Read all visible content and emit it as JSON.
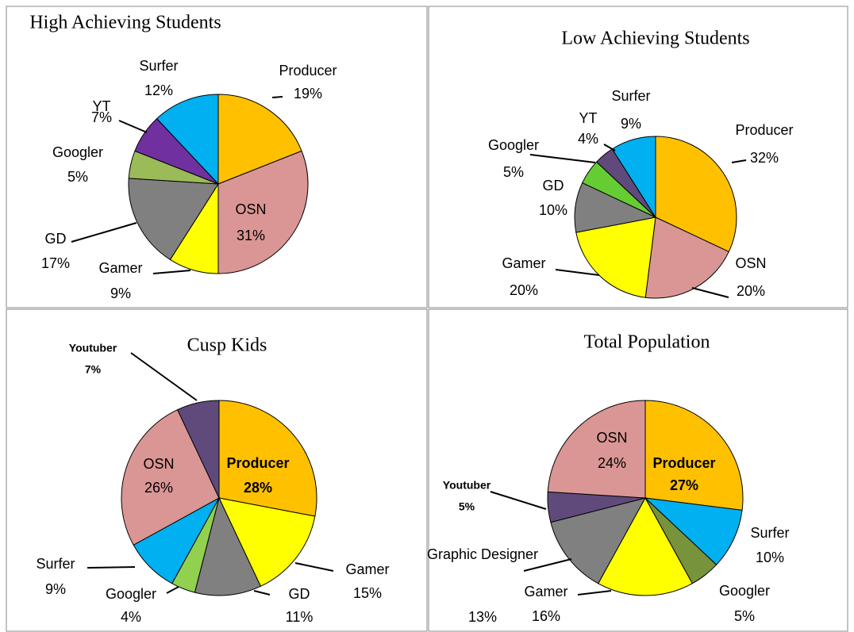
{
  "chart_data": [
    {
      "type": "pie",
      "title": "High Achieving Students",
      "categories": [
        "Producer",
        "OSN",
        "Gamer",
        "GD",
        "Googler",
        "YT",
        "Surfer"
      ],
      "values": [
        19,
        31,
        9,
        17,
        5,
        7,
        12
      ],
      "value_labels": [
        "19%",
        "31%",
        "9%",
        "17%",
        "5%",
        "7%",
        "12%"
      ],
      "colors": [
        "#FFC000",
        "#DA9694",
        "#FFFF00",
        "#808080",
        "#9BBB59",
        "#7030A0",
        "#00B0F0"
      ]
    },
    {
      "type": "pie",
      "title": "Low Achieving Students",
      "categories": [
        "Producer",
        "OSN",
        "Gamer",
        "GD",
        "Googler",
        "YT",
        "Surfer"
      ],
      "values": [
        32,
        20,
        20,
        10,
        5,
        4,
        9
      ],
      "value_labels": [
        "32%",
        "20%",
        "20%",
        "10%",
        "5%",
        "4%",
        "9%"
      ],
      "colors": [
        "#FFC000",
        "#DA9694",
        "#FFFF00",
        "#808080",
        "#66CC33",
        "#604A7B",
        "#00B0F0"
      ]
    },
    {
      "type": "pie",
      "title": "Cusp Kids",
      "categories": [
        "Producer",
        "Gamer",
        "GD",
        "Googler",
        "Surfer",
        "OSN",
        "Youtuber"
      ],
      "values": [
        28,
        15,
        11,
        4,
        9,
        26,
        7
      ],
      "value_labels": [
        "28%",
        "15%",
        "11%",
        "4%",
        "9%",
        "26%",
        "7%"
      ],
      "colors": [
        "#FFC000",
        "#FFFF00",
        "#808080",
        "#92D050",
        "#00B0F0",
        "#DA9694",
        "#604A7B"
      ]
    },
    {
      "type": "pie",
      "title": "Total Population",
      "categories": [
        "Producer",
        "Surfer",
        "Googler",
        "Gamer",
        "Graphic Designer",
        "Youtuber",
        "OSN"
      ],
      "values": [
        27,
        10,
        5,
        16,
        13,
        5,
        24
      ],
      "value_labels": [
        "27%",
        "10%",
        "5%",
        "16%",
        "13%",
        "5%",
        "24%"
      ],
      "colors": [
        "#FFC000",
        "#00B0F0",
        "#77933C",
        "#FFFF00",
        "#808080",
        "#604A7B",
        "#DA9694"
      ]
    }
  ]
}
